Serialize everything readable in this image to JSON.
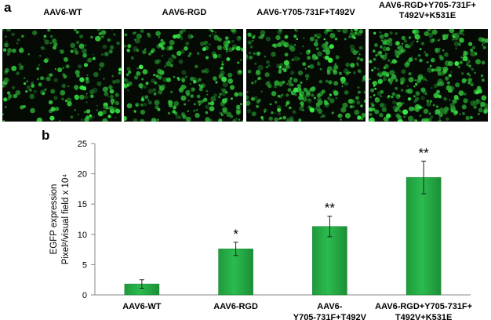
{
  "panel_a": {
    "letter": "a",
    "images": [
      {
        "title_lines": [
          "AAV6-WT"
        ],
        "density": 0.35
      },
      {
        "title_lines": [
          "AAV6-RGD"
        ],
        "density": 0.6
      },
      {
        "title_lines": [
          "AAV6-Y705-731F+T492V"
        ],
        "density": 0.75
      },
      {
        "title_lines": [
          "AAV6-RGD+Y705-731F+",
          "T492V+K531E"
        ],
        "density": 0.95
      }
    ]
  },
  "panel_b": {
    "letter": "b"
  },
  "chart_data": {
    "type": "bar",
    "categories": [
      [
        "AAV6-WT"
      ],
      [
        "AAV6-RGD"
      ],
      [
        "AAV6-",
        "Y705-731F+T492V"
      ],
      [
        "AAV6-RGD+Y705-731F+",
        "T492V+K531E"
      ]
    ],
    "values": [
      1.8,
      7.6,
      11.3,
      19.4
    ],
    "errors": [
      0.7,
      1.1,
      1.7,
      2.7
    ],
    "significance": [
      "",
      "*",
      "**",
      "**"
    ],
    "ylabel_lines": [
      "EGFP expression",
      "Pixel²/visual field x 10⁴"
    ],
    "yticks": [
      0,
      5,
      10,
      15,
      20,
      25
    ],
    "ylim": [
      0,
      25
    ],
    "bar_color": "#2bbb4e",
    "grid": false
  }
}
